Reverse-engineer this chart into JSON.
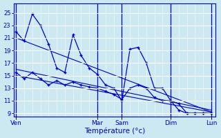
{
  "background_color": "#cce8f0",
  "grid_color": "#b8d8e8",
  "line_color": "#0000cc",
  "xlabel": "Température (°c)",
  "ylim": [
    8.5,
    26.5
  ],
  "yticks": [
    9,
    11,
    13,
    15,
    17,
    19,
    21,
    23,
    25
  ],
  "day_labels": [
    "Ven",
    "Mar",
    "Sam",
    "Dim",
    "Lun"
  ],
  "x_day_ticks": [
    0,
    10,
    13,
    19,
    24
  ],
  "n_points": 25,
  "x_max": 24,
  "high_x": [
    0,
    1,
    2,
    3,
    4,
    5,
    6,
    7,
    8,
    9,
    10,
    11,
    12,
    13,
    14,
    15,
    16,
    17,
    18,
    19,
    20,
    21,
    22,
    23,
    24
  ],
  "high_y": [
    22.0,
    20.5,
    24.8,
    23.0,
    20.0,
    16.2,
    15.5,
    21.5,
    18.2,
    16.2,
    15.2,
    13.5,
    13.0,
    11.0,
    19.2,
    19.5,
    17.0,
    13.0,
    13.0,
    11.0,
    10.5,
    9.0,
    9.0,
    9.0,
    9.0
  ],
  "low_x": [
    0,
    1,
    2,
    3,
    4,
    5,
    6,
    7,
    8,
    9,
    10,
    11,
    12,
    13,
    14,
    15,
    16,
    17,
    18,
    19,
    20,
    21,
    22,
    23,
    24
  ],
  "low_y": [
    15.5,
    14.5,
    15.5,
    14.5,
    13.5,
    14.2,
    13.5,
    14.0,
    13.5,
    13.2,
    13.0,
    12.5,
    12.0,
    11.2,
    13.0,
    13.5,
    13.0,
    11.5,
    11.0,
    11.0,
    9.5,
    9.0,
    9.0,
    9.0,
    9.0
  ],
  "trend1_x": [
    0,
    24
  ],
  "trend1_y": [
    21.0,
    9.2
  ],
  "trend2_x": [
    0,
    24
  ],
  "trend2_y": [
    16.0,
    9.5
  ],
  "trend3_x": [
    0,
    24
  ],
  "trend3_y": [
    15.0,
    9.2
  ]
}
